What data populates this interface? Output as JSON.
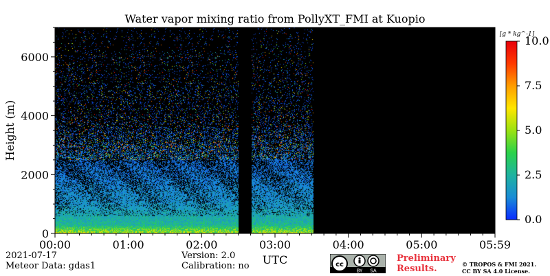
{
  "chart_data": {
    "type": "heatmap",
    "title": "Water vapor mixing ratio from PollyXT_FMI at Kuopio",
    "xlabel": "UTC",
    "ylabel": "Height (m)",
    "x_ticks": [
      "00:00",
      "01:00",
      "02:00",
      "03:00",
      "04:00",
      "05:00",
      "05:59"
    ],
    "x_range_hours": [
      0,
      6
    ],
    "y_ticks": [
      0,
      2000,
      4000,
      6000
    ],
    "ylim": [
      0,
      7000
    ],
    "colorbar": {
      "label": "[g * kg^-1]",
      "ticks": [
        "0.0",
        "2.5",
        "5.0",
        "7.5",
        "10.0"
      ],
      "range": [
        0,
        10
      ],
      "colormap": [
        "#0a2bff",
        "#1a8cd6",
        "#1fb3a0",
        "#2ad24a",
        "#9be212",
        "#ffe600",
        "#ff9d00",
        "#ff3a00",
        "#e8000b"
      ]
    },
    "data_coverage_hours": [
      0.0,
      3.52
    ],
    "gap_hours": [
      2.5,
      2.68
    ],
    "no_data_color": "#000000",
    "profile_summary": [
      {
        "height_m": 0,
        "mixing_ratio": 5.0
      },
      {
        "height_m": 300,
        "mixing_ratio": 2.5
      },
      {
        "height_m": 1000,
        "mixing_ratio": 1.5
      },
      {
        "height_m": 2000,
        "mixing_ratio": 1.0
      },
      {
        "height_m": 3000,
        "mixing_ratio": 0.8
      },
      {
        "height_m": 4000,
        "mixing_ratio": 0.5
      }
    ]
  },
  "footer": {
    "date": "2021-07-17",
    "meteor": "Meteor Data: gdas1",
    "version": "Version: 2.0",
    "calibration": "Calibration: no",
    "preliminary_line1": "Preliminary",
    "preliminary_line2": "Results.",
    "copyright_line1": "© TROPOS & FMI 2021.",
    "copyright_line2": "CC BY SA 4.0 License.",
    "badge": {
      "cc": "cc",
      "by": "BY",
      "sa": "SA"
    }
  }
}
